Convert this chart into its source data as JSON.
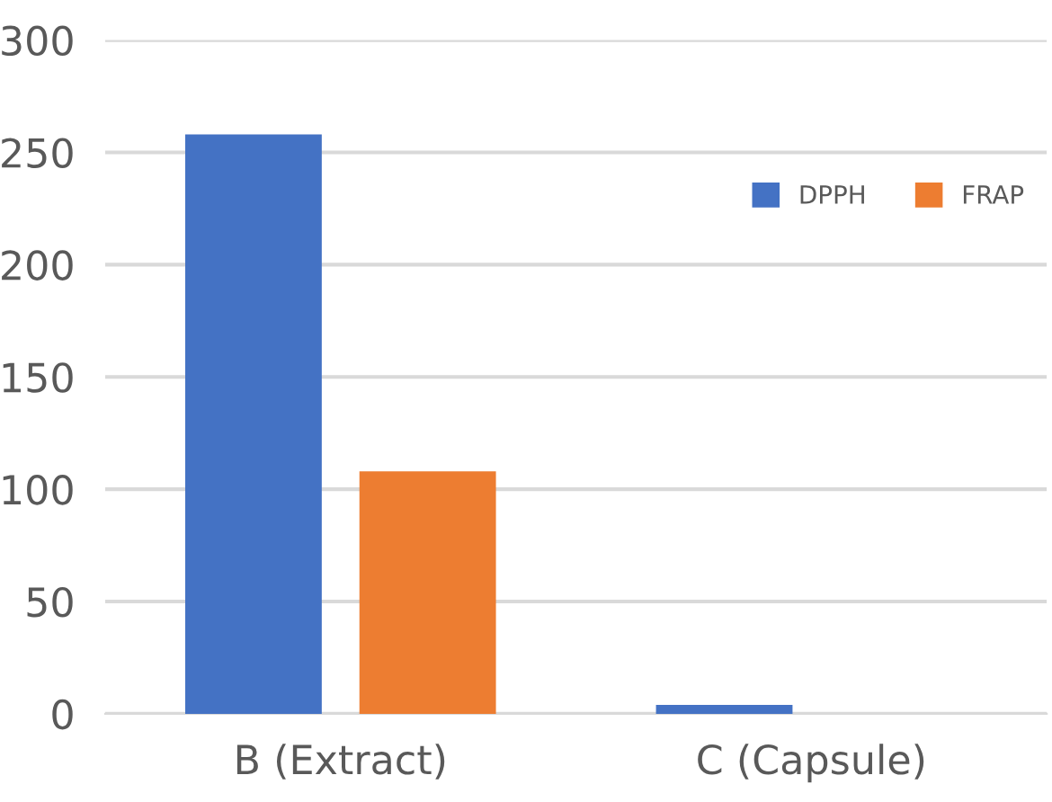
{
  "chart_data": {
    "type": "bar",
    "categories": [
      "B (Extract)",
      "C (Capsule)"
    ],
    "series": [
      {
        "name": "DPPH",
        "color": "#4472c4",
        "values": [
          258,
          4
        ]
      },
      {
        "name": "FRAP",
        "color": "#ed7d31",
        "values": [
          108,
          null
        ]
      }
    ],
    "ylim": [
      0,
      300
    ],
    "yticks": [
      0,
      50,
      100,
      150,
      200,
      250,
      300
    ],
    "grid": "y",
    "legend": "top right"
  }
}
